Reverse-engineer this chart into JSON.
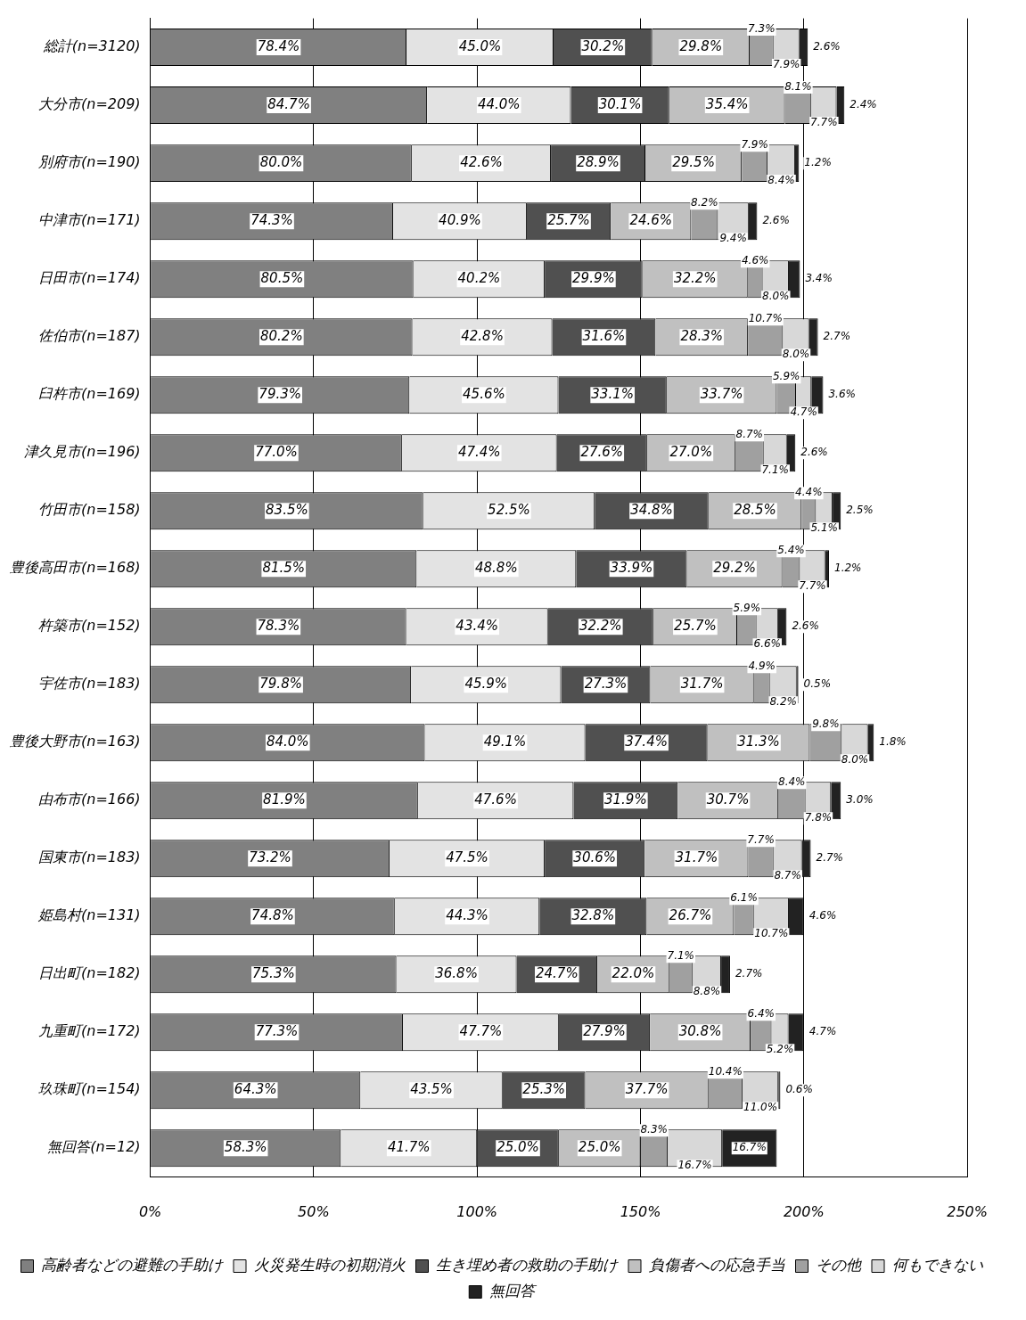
{
  "chart_data": {
    "type": "bar",
    "orientation": "horizontal",
    "stacked": true,
    "grid": "x",
    "legend": "bottom",
    "categories": [
      "総計(n=3120)",
      "大分市(n=209)",
      "別府市(n=190)",
      "中津市(n=171)",
      "日田市(n=174)",
      "佐伯市(n=187)",
      "臼杵市(n=169)",
      "津久見市(n=196)",
      "竹田市(n=158)",
      "豊後高田市(n=168)",
      "杵築市(n=152)",
      "宇佐市(n=183)",
      "豊後大野市(n=163)",
      "由布市(n=166)",
      "国東市(n=183)",
      "姫島村(n=131)",
      "日出町(n=182)",
      "九重町(n=172)",
      "玖珠町(n=154)",
      "無回答(n=12)"
    ],
    "xlim": [
      0,
      250
    ],
    "xticks": [
      {
        "value": 0,
        "label": "0%"
      },
      {
        "value": 50,
        "label": "50%"
      },
      {
        "value": 100,
        "label": "100%"
      },
      {
        "value": 150,
        "label": "150%"
      },
      {
        "value": 200,
        "label": "200%"
      },
      {
        "value": 250,
        "label": "250%"
      }
    ],
    "series": [
      {
        "name": "高齢者などの避難の手助け",
        "color": "#808080",
        "values": [
          78.4,
          84.7,
          80.0,
          74.3,
          80.5,
          80.2,
          79.3,
          77.0,
          83.5,
          81.5,
          78.3,
          79.8,
          84.0,
          81.9,
          73.2,
          74.8,
          75.3,
          77.3,
          64.3,
          58.3
        ],
        "value_labels": [
          "78.4%",
          "84.7%",
          "80.0%",
          "74.3%",
          "80.5%",
          "80.2%",
          "79.3%",
          "77.0%",
          "83.5%",
          "81.5%",
          "78.3%",
          "79.8%",
          "84.0%",
          "81.9%",
          "73.2%",
          "74.8%",
          "75.3%",
          "77.3%",
          "64.3%",
          "58.3%"
        ]
      },
      {
        "name": "火災発生時の初期消火",
        "color": "#e3e3e3",
        "values": [
          45.0,
          44.0,
          42.6,
          40.9,
          40.2,
          42.8,
          45.6,
          47.4,
          52.5,
          48.8,
          43.4,
          45.9,
          49.1,
          47.6,
          47.5,
          44.3,
          36.8,
          47.7,
          43.5,
          41.7
        ],
        "value_labels": [
          "45.0%",
          "44.0%",
          "42.6%",
          "40.9%",
          "40.2%",
          "42.8%",
          "45.6%",
          "47.4%",
          "52.5%",
          "48.8%",
          "43.4%",
          "45.9%",
          "49.1%",
          "47.6%",
          "47.5%",
          "44.3%",
          "36.8%",
          "47.7%",
          "43.5%",
          "41.7%"
        ]
      },
      {
        "name": "生き埋め者の救助の手助け",
        "color": "#505050",
        "values": [
          30.2,
          30.1,
          28.9,
          25.7,
          29.9,
          31.6,
          33.1,
          27.6,
          34.8,
          33.9,
          32.2,
          27.3,
          37.4,
          31.9,
          30.6,
          32.8,
          24.7,
          27.9,
          25.3,
          25.0
        ],
        "value_labels": [
          "30.2%",
          "30.1%",
          "28.9%",
          "25.7%",
          "29.9%",
          "31.6%",
          "33.1%",
          "27.6%",
          "34.8%",
          "33.9%",
          "32.2%",
          "27.3%",
          "37.4%",
          "31.9%",
          "30.6%",
          "32.8%",
          "24.7%",
          "27.9%",
          "25.3%",
          "25.0%"
        ]
      },
      {
        "name": "負傷者への応急手当",
        "color": "#c0c0c0",
        "values": [
          29.8,
          35.4,
          29.5,
          24.6,
          32.2,
          28.3,
          33.7,
          27.0,
          28.5,
          29.2,
          25.7,
          31.7,
          31.3,
          30.7,
          31.7,
          26.7,
          22.0,
          30.8,
          37.7,
          25.0
        ],
        "value_labels": [
          "29.8%",
          "35.4%",
          "29.5%",
          "24.6%",
          "32.2%",
          "28.3%",
          "33.7%",
          "27.0%",
          "28.5%",
          "29.2%",
          "25.7%",
          "31.7%",
          "31.3%",
          "30.7%",
          "31.7%",
          "26.7%",
          "22.0%",
          "30.8%",
          "37.7%",
          "25.0%"
        ]
      },
      {
        "name": "その他",
        "color": "#a0a0a0",
        "values": [
          7.3,
          8.1,
          7.9,
          8.2,
          4.6,
          10.7,
          5.9,
          8.7,
          4.4,
          5.4,
          5.9,
          4.9,
          9.8,
          8.4,
          7.7,
          6.1,
          7.1,
          6.4,
          10.4,
          8.3
        ],
        "value_labels": [
          "7.3%",
          "8.1%",
          "7.9%",
          "8.2%",
          "4.6%",
          "10.7%",
          "5.9%",
          "8.7%",
          "4.4%",
          "5.4%",
          "5.9%",
          "4.9%",
          "9.8%",
          "8.4%",
          "7.7%",
          "6.1%",
          "7.1%",
          "6.4%",
          "10.4%",
          "8.3%"
        ]
      },
      {
        "name": "何もできない",
        "color": "#d8d8d8",
        "values": [
          7.9,
          7.7,
          8.4,
          9.4,
          8.0,
          8.0,
          4.7,
          7.1,
          5.1,
          7.7,
          6.6,
          8.2,
          8.0,
          7.8,
          8.7,
          10.7,
          8.8,
          5.2,
          11.0,
          16.7
        ],
        "value_labels": [
          "7.9%",
          "7.7%",
          "8.4%",
          "9.4%",
          "8.0%",
          "8.0%",
          "4.7%",
          "7.1%",
          "5.1%",
          "7.7%",
          "6.6%",
          "8.2%",
          "8.0%",
          "7.8%",
          "8.7%",
          "10.7%",
          "8.8%",
          "5.2%",
          "11.0%",
          "16.7%"
        ]
      },
      {
        "name": "無回答",
        "color": "#222222",
        "values": [
          2.6,
          2.4,
          1.2,
          2.6,
          3.4,
          2.7,
          3.6,
          2.6,
          2.5,
          1.2,
          2.6,
          0.5,
          1.8,
          3.0,
          2.7,
          4.6,
          2.7,
          4.7,
          0.6,
          16.7
        ],
        "value_labels": [
          "2.6%",
          "2.4%",
          "1.2%",
          "2.6%",
          "3.4%",
          "2.7%",
          "3.6%",
          "2.6%",
          "2.5%",
          "1.2%",
          "2.6%",
          "0.5%",
          "1.8%",
          "3.0%",
          "2.7%",
          "4.6%",
          "2.7%",
          "4.7%",
          "0.6%",
          "16.7%"
        ]
      }
    ]
  }
}
